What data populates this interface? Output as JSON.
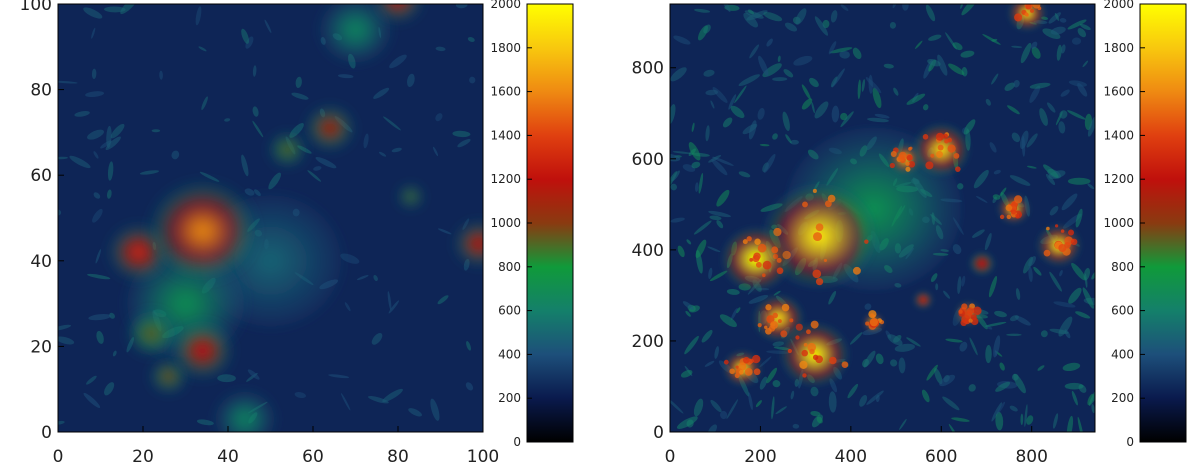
{
  "chart_data": [
    {
      "type": "heatmap",
      "title": "",
      "xlabel": "",
      "ylabel": "",
      "xlim": [
        0,
        100
      ],
      "ylim": [
        0,
        100
      ],
      "x_ticks": [
        "0",
        "20",
        "40",
        "60",
        "80",
        "100"
      ],
      "y_ticks": [
        "0",
        "20",
        "40",
        "60",
        "80",
        "100"
      ],
      "grid": false,
      "colorbar": {
        "range": [
          0,
          2000
        ],
        "ticks": [
          "0",
          "200",
          "400",
          "600",
          "800",
          "1000",
          "1200",
          "1400",
          "1600",
          "1800",
          "2000"
        ],
        "colors": [
          "#000000",
          "#0a1a4d",
          "#1d4f7a",
          "#14806a",
          "#109a3a",
          "#8a3a10",
          "#c0100c",
          "#e04010",
          "#ef8a12",
          "#f8c80e",
          "#ffff00"
        ]
      },
      "features": [
        {
          "x": 34,
          "y": 47,
          "radius": 9,
          "value": 1600
        },
        {
          "x": 19,
          "y": 42,
          "radius": 5,
          "value": 1350
        },
        {
          "x": 34,
          "y": 19,
          "radius": 5,
          "value": 1250
        },
        {
          "x": 22,
          "y": 23,
          "radius": 4,
          "value": 950
        },
        {
          "x": 26,
          "y": 13,
          "radius": 3,
          "value": 1000
        },
        {
          "x": 64,
          "y": 71,
          "radius": 4,
          "value": 1150
        },
        {
          "x": 54,
          "y": 66,
          "radius": 3,
          "value": 950
        },
        {
          "x": 80,
          "y": 101,
          "radius": 4,
          "value": 1250
        },
        {
          "x": 99,
          "y": 44,
          "radius": 4,
          "value": 1250
        },
        {
          "x": 83,
          "y": 55,
          "radius": 2,
          "value": 950
        },
        {
          "x": 70,
          "y": 94,
          "radius": 6,
          "value": 650
        },
        {
          "x": 44,
          "y": 3,
          "radius": 5,
          "value": 650
        },
        {
          "x": 50,
          "y": 40,
          "radius": 12,
          "value": 480
        },
        {
          "x": 30,
          "y": 30,
          "radius": 10,
          "value": 700
        }
      ]
    },
    {
      "type": "heatmap",
      "title": "",
      "xlabel": "",
      "ylabel": "",
      "xlim": [
        0,
        940
      ],
      "ylim": [
        0,
        940
      ],
      "x_ticks": [
        "0",
        "200",
        "400",
        "600",
        "800"
      ],
      "y_ticks": [
        "0",
        "200",
        "400",
        "600",
        "800"
      ],
      "grid": false,
      "colorbar": {
        "range": [
          0,
          2000
        ],
        "ticks": [
          "0",
          "200",
          "400",
          "600",
          "800",
          "1000",
          "1200",
          "1400",
          "1600",
          "1800",
          "2000"
        ],
        "colors": [
          "#000000",
          "#0a1a4d",
          "#1d4f7a",
          "#14806a",
          "#109a3a",
          "#8a3a10",
          "#c0100c",
          "#e04010",
          "#ef8a12",
          "#f8c80e",
          "#ffff00"
        ]
      },
      "features": [
        {
          "x": 330,
          "y": 430,
          "radius": 90,
          "value": 1900
        },
        {
          "x": 190,
          "y": 380,
          "radius": 55,
          "value": 2000
        },
        {
          "x": 320,
          "y": 170,
          "radius": 55,
          "value": 1950
        },
        {
          "x": 240,
          "y": 250,
          "radius": 40,
          "value": 1850
        },
        {
          "x": 160,
          "y": 140,
          "radius": 30,
          "value": 1900
        },
        {
          "x": 600,
          "y": 620,
          "radius": 45,
          "value": 1850
        },
        {
          "x": 520,
          "y": 600,
          "radius": 25,
          "value": 1800
        },
        {
          "x": 790,
          "y": 920,
          "radius": 30,
          "value": 1850
        },
        {
          "x": 860,
          "y": 410,
          "radius": 35,
          "value": 1900
        },
        {
          "x": 760,
          "y": 490,
          "radius": 25,
          "value": 1850
        },
        {
          "x": 660,
          "y": 260,
          "radius": 20,
          "value": 1700
        },
        {
          "x": 450,
          "y": 240,
          "radius": 15,
          "value": 1900
        },
        {
          "x": 560,
          "y": 290,
          "radius": 15,
          "value": 1400
        },
        {
          "x": 690,
          "y": 370,
          "radius": 20,
          "value": 1300
        },
        {
          "x": 450,
          "y": 490,
          "radius": 140,
          "value": 700
        }
      ]
    }
  ]
}
